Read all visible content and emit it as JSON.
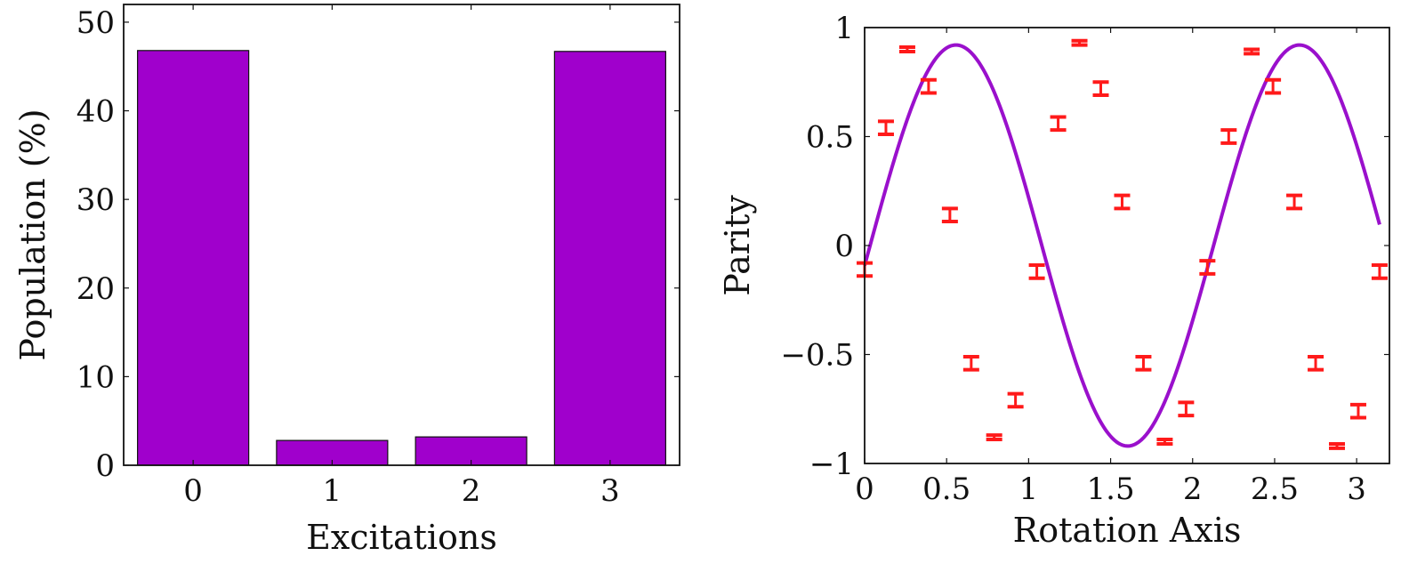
{
  "chart_data": [
    {
      "type": "bar",
      "categories": [
        "0",
        "1",
        "2",
        "3"
      ],
      "values": [
        46.8,
        2.8,
        3.2,
        46.7
      ],
      "title": "",
      "xlabel": "Excitations",
      "ylabel": "Population (%)",
      "xticks": [
        "0",
        "1",
        "2",
        "3"
      ],
      "yticks": [
        "0",
        "10",
        "20",
        "30",
        "40",
        "50"
      ],
      "ylim": [
        0,
        52
      ],
      "grid": false,
      "legend": "none",
      "bar_color": "#a000cc",
      "bar_outline": "#111111"
    },
    {
      "type": "scatter",
      "title": "",
      "xlabel": "Rotation Axis",
      "ylabel": "Parity",
      "xticks": [
        "0",
        "0.5",
        "1",
        "1.5",
        "2",
        "2.5",
        "3"
      ],
      "yticks": [
        "−1",
        "−0.5",
        "0",
        "0.5",
        "1"
      ],
      "xlim": [
        0,
        3.2
      ],
      "ylim": [
        -1,
        1
      ],
      "grid": false,
      "legend": "none",
      "fit_curve": {
        "amplitude": 0.92,
        "frequency": 3,
        "phase": -0.1,
        "color": "#9a10cc"
      },
      "points": {
        "x": [
          0,
          0.13,
          0.26,
          0.39,
          0.52,
          0.65,
          0.79,
          0.92,
          1.05,
          1.18,
          1.31,
          1.44,
          1.57,
          1.7,
          1.83,
          1.96,
          2.09,
          2.22,
          2.36,
          2.49,
          2.62,
          2.75,
          2.88,
          3.01,
          3.14
        ],
        "y": [
          -0.11,
          0.54,
          0.9,
          0.73,
          0.14,
          -0.54,
          -0.88,
          -0.71,
          -0.12,
          0.56,
          0.93,
          0.72,
          0.2,
          -0.54,
          -0.9,
          -0.75,
          -0.1,
          0.5,
          0.89,
          0.73,
          0.2,
          -0.54,
          -0.92,
          -0.76,
          -0.12
        ],
        "error": [
          0.03,
          0.03,
          0.01,
          0.03,
          0.03,
          0.03,
          0.01,
          0.03,
          0.03,
          0.03,
          0.01,
          0.03,
          0.03,
          0.03,
          0.01,
          0.03,
          0.03,
          0.03,
          0.01,
          0.03,
          0.03,
          0.03,
          0.01,
          0.03,
          0.03
        ],
        "color": "#ff1a1a"
      }
    }
  ]
}
